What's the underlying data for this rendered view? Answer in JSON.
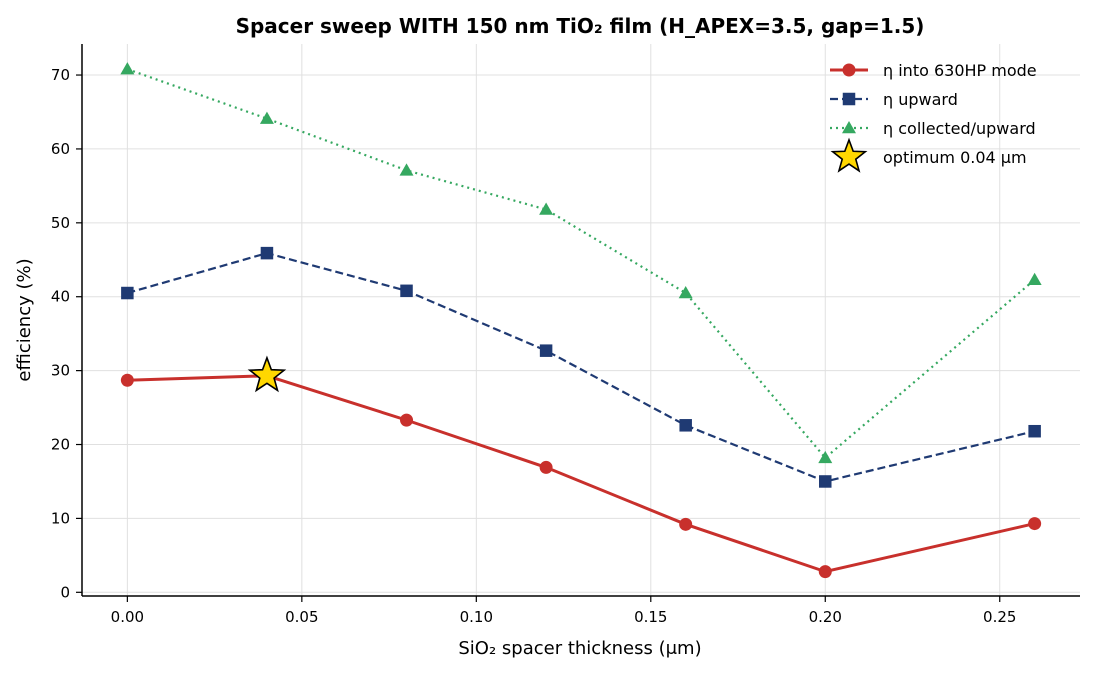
{
  "chart_data": {
    "type": "line",
    "title": "Spacer sweep WITH 150 nm TiO₂ film (H_APEX=3.5, gap=1.5)",
    "xlabel": "SiO₂ spacer thickness (μm)",
    "ylabel": "efficiency (%)",
    "x": [
      0.0,
      0.04,
      0.08,
      0.12,
      0.16,
      0.2,
      0.26
    ],
    "xlim": [
      -0.013,
      0.273
    ],
    "ylim": [
      -0.5,
      74.2
    ],
    "xticks": [
      "0.00",
      "0.05",
      "0.10",
      "0.15",
      "0.20",
      "0.25"
    ],
    "xtick_values": [
      0.0,
      0.05,
      0.1,
      0.15,
      0.2,
      0.25
    ],
    "yticks": [
      "0",
      "10",
      "20",
      "30",
      "40",
      "50",
      "60",
      "70"
    ],
    "ytick_values": [
      0,
      10,
      20,
      30,
      40,
      50,
      60,
      70
    ],
    "grid": true,
    "legend_position": "top-right",
    "series": [
      {
        "name": "η into 630HP mode",
        "values": [
          28.7,
          29.3,
          23.3,
          16.9,
          9.2,
          2.8,
          9.3
        ],
        "color": "#c8302c",
        "line_style": "solid",
        "marker": "circle"
      },
      {
        "name": "η upward",
        "values": [
          40.5,
          45.9,
          40.8,
          32.7,
          22.6,
          15.0,
          21.8
        ],
        "color": "#1f3a73",
        "line_style": "dashed",
        "marker": "square"
      },
      {
        "name": "η collected/upward",
        "values": [
          70.8,
          64.1,
          57.1,
          51.8,
          40.5,
          18.2,
          42.3
        ],
        "color": "#35a860",
        "line_style": "dotted",
        "marker": "triangle"
      }
    ],
    "annotations": [
      {
        "label": "optimum 0.04 μm",
        "x": 0.04,
        "y": 29.3,
        "marker": "star",
        "color": "#ffd700"
      }
    ]
  }
}
